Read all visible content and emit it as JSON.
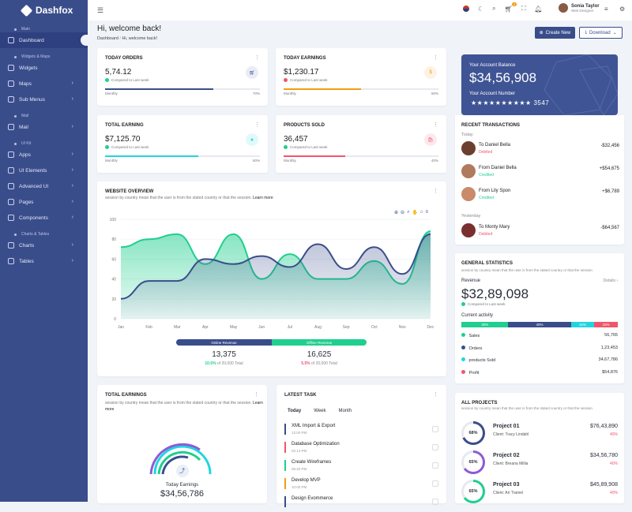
{
  "app": {
    "name": "Dashfox"
  },
  "sidebar": {
    "sections": [
      {
        "title": "Main",
        "items": [
          {
            "label": "Dashboard",
            "active": true,
            "chevron": false
          }
        ]
      },
      {
        "title": "Widgets & Maps",
        "items": [
          {
            "label": "Widgets",
            "chevron": false
          },
          {
            "label": "Maps",
            "chevron": true
          },
          {
            "label": "Sub Menus",
            "chevron": true
          }
        ]
      },
      {
        "title": "Mail",
        "items": [
          {
            "label": "Mail",
            "chevron": true
          }
        ]
      },
      {
        "title": "UI Kit",
        "items": [
          {
            "label": "Apps",
            "chevron": true
          },
          {
            "label": "UI Elements",
            "chevron": true
          },
          {
            "label": "Advanced UI",
            "chevron": true
          },
          {
            "label": "Pages",
            "chevron": true
          },
          {
            "label": "Components",
            "chevron": true
          }
        ]
      },
      {
        "title": "Charts & Tables",
        "items": [
          {
            "label": "Charts",
            "chevron": true
          },
          {
            "label": "Tables",
            "chevron": true
          }
        ]
      }
    ]
  },
  "topbar": {
    "cart_badge": "3",
    "user_name": "Sonia Taylor",
    "user_role": "Web Designer"
  },
  "header": {
    "title": "Hi, welcome back!",
    "crumb_home": "Dashboard",
    "crumb_current": "Hi, welcome back!",
    "create_label": "Create New",
    "download_label": "Download"
  },
  "stats": [
    {
      "title": "TODAY ORDERS",
      "value": "5,74.12",
      "compare": "Compared to Last week",
      "period": "Monthly",
      "percent": "70%",
      "fill": 0.7,
      "color": "#3a4d8b",
      "trend_color": "#1fcf8f"
    },
    {
      "title": "TODAY EARNINGS",
      "value": "$1,230.17",
      "compare": "Compared to Last week",
      "period": "Monthly",
      "percent": "50%",
      "fill": 0.5,
      "color": "#f39c12",
      "trend_color": "#f1556c"
    },
    {
      "title": "TOTAL EARNING",
      "value": "$7,125.70",
      "compare": "Compared to Last week",
      "period": "Monthly",
      "percent": "60%",
      "fill": 0.6,
      "color": "#1fd6e0",
      "trend_color": "#1fcf8f"
    },
    {
      "title": "PRODUCTS SOLD",
      "value": "36,457",
      "compare": "Compared to Last week",
      "period": "Monthly",
      "percent": "40%",
      "fill": 0.4,
      "color": "#f1556c",
      "trend_color": "#1fcf8f"
    }
  ],
  "balance": {
    "label": "Your Account Balance",
    "value": "$34,56,908",
    "number_label": "Your Account Number",
    "number": "★★★★★★★★★★ 3547"
  },
  "transactions": {
    "title": "RECENT TRANSACTIONS",
    "today": "Today",
    "yesterday": "Yesterday",
    "items": [
      {
        "name": "To Daniel Bella",
        "status": "Debited",
        "amount": "-$32,456",
        "status_color": "#f1556c"
      },
      {
        "name": "From Daniel Bella",
        "status": "Credited",
        "amount": "+$54,675",
        "status_color": "#1fcf8f"
      },
      {
        "name": "From Lily Spon",
        "status": "Credited",
        "amount": "+$6,789",
        "status_color": "#1fcf8f"
      },
      {
        "name": "To Monty Mary",
        "status": "Debited",
        "amount": "-$64,567",
        "status_color": "#f1556c"
      }
    ]
  },
  "overview": {
    "title": "WEBSITE OVERVIEW",
    "subtitle": "session by country mean that the user is from the stated country or that the session.",
    "learn_more": "Learn more",
    "online_label": "Online Revenue",
    "offline_label": "Offline Revenue",
    "online_value": "13,375",
    "offline_value": "16,625",
    "online_pct": "10.5%",
    "offline_pct": "5.5%",
    "online_note": "of 20,000 Total",
    "offline_note": "of 20,000 Total"
  },
  "chart_data": {
    "type": "area",
    "categories": [
      "Jan",
      "Feb",
      "Mar",
      "Apr",
      "May",
      "Jun",
      "Jul",
      "Aug",
      "Sep",
      "Oct",
      "Nov",
      "Dec"
    ],
    "ylim": [
      0,
      100
    ],
    "yticks": [
      "0",
      "20",
      "40",
      "60",
      "80",
      "100"
    ],
    "series": [
      {
        "values": [
          20,
          38,
          38,
          60,
          55,
          63,
          52,
          75,
          50,
          72,
          45,
          85
        ],
        "color": "#3a4d8b"
      },
      {
        "values": [
          72,
          80,
          85,
          55,
          85,
          40,
          65,
          40,
          40,
          58,
          35,
          88
        ],
        "color": "#1fcf8f"
      }
    ]
  },
  "general": {
    "title": "GENERAL STATISTICS",
    "subtitle": "session by country mean that the user is from the stated country or that the session",
    "revenue_label": "Revenue",
    "details": "Details ›",
    "revenue": "$32,89,098",
    "compare": "Compared to Last week",
    "activity_label": "Current activity",
    "segments": [
      {
        "label": "30%",
        "pct": 30,
        "color": "#1fcf8f"
      },
      {
        "label": "40%",
        "pct": 40,
        "color": "#3a4d8b"
      },
      {
        "label": "15%",
        "pct": 15,
        "color": "#1fd6e0"
      },
      {
        "label": "15%",
        "pct": 15,
        "color": "#f1556c"
      }
    ],
    "rows": [
      {
        "label": "Sales",
        "value": "56,765",
        "color": "#1fcf8f"
      },
      {
        "label": "Orders",
        "value": "1,23,453",
        "color": "#3a4d8b"
      },
      {
        "label": "products Sold",
        "value": "34,67,786",
        "color": "#1fd6e0"
      },
      {
        "label": "Profit",
        "value": "$54,876",
        "color": "#f1556c"
      }
    ]
  },
  "total_earnings": {
    "title": "TOTAL EARNINGS",
    "subtitle": "session by country mean that the user is from the stated country or that the session.",
    "learn_more": "Learn more",
    "label": "Today Earnings",
    "value": "$34,56,786"
  },
  "tasks": {
    "title": "LATEST TASK",
    "tabs": [
      "Today",
      "Week",
      "Month"
    ],
    "items": [
      {
        "title": "XML Import & Export",
        "time": "12:00 PM",
        "color": "#3a4d8b"
      },
      {
        "title": "Database Optimization",
        "time": "02:13 PM",
        "color": "#f1556c"
      },
      {
        "title": "Create Wireframes",
        "time": "06:20 PM",
        "color": "#1fcf8f"
      },
      {
        "title": "Develop MVP",
        "time": "10:00 PM",
        "color": "#f39c12"
      },
      {
        "title": "Design Evommerce",
        "time": "",
        "color": "#3a4d8b"
      }
    ]
  },
  "projects": {
    "title": "ALL PROJECTS",
    "subtitle": "session by country mean that the user is from the stated country or that the session",
    "items": [
      {
        "name": "Project 01",
        "client": "Client: Tracy Lindahl",
        "amount": "$76,43,890",
        "pct": "40%",
        "ring": "68%",
        "fill": 0.68,
        "color": "#3a4d8b"
      },
      {
        "name": "Project 02",
        "client": "Client: Breana Millia",
        "amount": "$34,56,780",
        "pct": "40%",
        "ring": "65%",
        "fill": 0.65,
        "color": "#8e5ad6"
      },
      {
        "name": "Project 03",
        "client": "Client: Ari Tramel",
        "amount": "$45,89,908",
        "pct": "40%",
        "ring": "65%",
        "fill": 0.65,
        "color": "#1fcf8f"
      }
    ]
  }
}
